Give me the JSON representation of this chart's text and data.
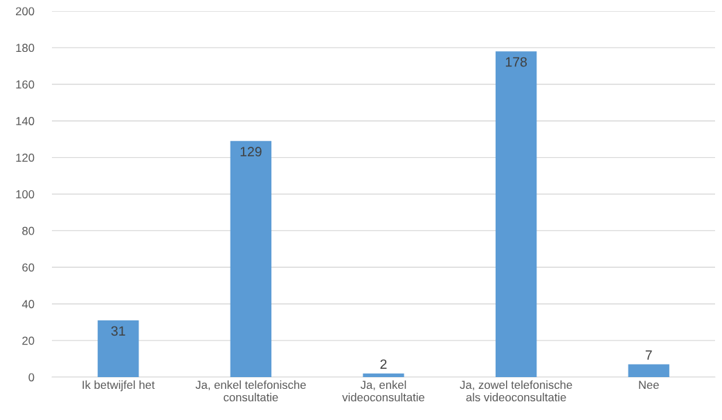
{
  "chart_data": {
    "type": "bar",
    "categories": [
      "Ik betwijfel het",
      "Ja, enkel telefonische\nconsultatie",
      "Ja, enkel\nvideoconsultatie",
      "Ja, zowel telefonische\nals videoconsultatie",
      "Nee"
    ],
    "values": [
      31,
      129,
      2,
      178,
      7
    ],
    "color": "#5b9bd5",
    "ylim": [
      0,
      200
    ],
    "yticks": [
      0,
      20,
      40,
      60,
      80,
      100,
      120,
      140,
      160,
      180,
      200
    ],
    "grid": "y",
    "data_labels": true
  }
}
